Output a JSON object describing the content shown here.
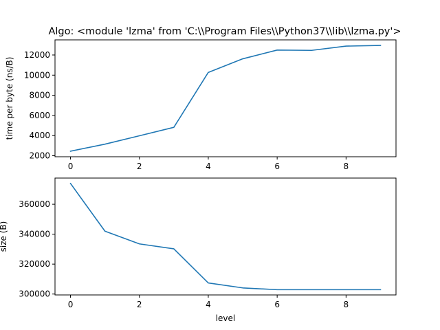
{
  "chart_data": [
    {
      "type": "line",
      "title": "Algo: <module 'lzma' from 'C:\\\\Program Files\\\\Python37\\\\lib\\\\lzma.py'>",
      "xlabel": "",
      "ylabel": "time per byte (ns/B)",
      "xlim": [
        -0.45,
        9.45
      ],
      "ylim": [
        1900,
        13500
      ],
      "xticks": [
        0,
        2,
        4,
        6,
        8
      ],
      "xtick_labels": [
        "0",
        "2",
        "4",
        "6",
        "8"
      ],
      "yticks": [
        2000,
        4000,
        6000,
        8000,
        10000,
        12000
      ],
      "ytick_labels": [
        "2000",
        "4000",
        "6000",
        "8000",
        "10000",
        "12000"
      ],
      "grid": false,
      "color": "#1f77b4",
      "x": [
        0,
        1,
        2,
        3,
        4,
        5,
        6,
        7,
        8,
        9
      ],
      "y": [
        2450,
        3150,
        3980,
        4820,
        10270,
        11620,
        12490,
        12460,
        12880,
        12950
      ]
    },
    {
      "type": "line",
      "title": "",
      "xlabel": "level",
      "ylabel": "size (B)",
      "xlim": [
        -0.45,
        9.45
      ],
      "ylim": [
        299400,
        377500
      ],
      "xticks": [
        0,
        2,
        4,
        6,
        8
      ],
      "xtick_labels": [
        "0",
        "2",
        "4",
        "6",
        "8"
      ],
      "yticks": [
        300000,
        320000,
        340000,
        360000
      ],
      "ytick_labels": [
        "300000",
        "320000",
        "340000",
        "360000"
      ],
      "grid": false,
      "color": "#1f77b4",
      "x": [
        0,
        1,
        2,
        3,
        4,
        5,
        6,
        7,
        8,
        9
      ],
      "y": [
        373900,
        342000,
        333500,
        330200,
        307400,
        304100,
        302900,
        302900,
        302900,
        302900
      ]
    }
  ]
}
